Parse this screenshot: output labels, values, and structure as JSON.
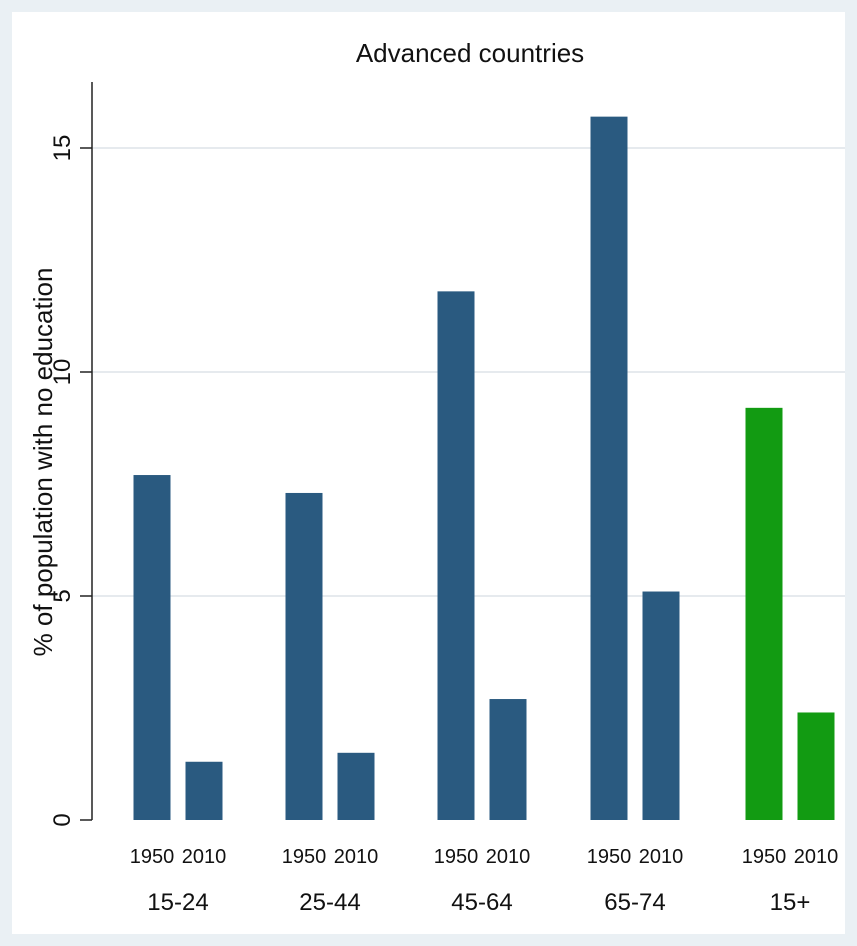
{
  "chart_data": {
    "type": "bar",
    "title": "Advanced countries",
    "ylabel": "% of population with no education",
    "xlabel": "",
    "ylim": [
      0,
      16.5
    ],
    "yticks": [
      0,
      5,
      10,
      15
    ],
    "grid": true,
    "legend": "none",
    "groups": [
      {
        "label": "15-24",
        "bars": [
          {
            "year": "1950",
            "value": 7.7,
            "color": "#2a5a80"
          },
          {
            "year": "2010",
            "value": 1.3,
            "color": "#2a5a80"
          }
        ]
      },
      {
        "label": "25-44",
        "bars": [
          {
            "year": "1950",
            "value": 7.3,
            "color": "#2a5a80"
          },
          {
            "year": "2010",
            "value": 1.5,
            "color": "#2a5a80"
          }
        ]
      },
      {
        "label": "45-64",
        "bars": [
          {
            "year": "1950",
            "value": 11.8,
            "color": "#2a5a80"
          },
          {
            "year": "2010",
            "value": 2.7,
            "color": "#2a5a80"
          }
        ]
      },
      {
        "label": "65-74",
        "bars": [
          {
            "year": "1950",
            "value": 15.7,
            "color": "#2a5a80"
          },
          {
            "year": "2010",
            "value": 5.1,
            "color": "#2a5a80"
          }
        ]
      },
      {
        "label": "15+",
        "bars": [
          {
            "year": "1950",
            "value": 9.2,
            "color": "#129b12"
          },
          {
            "year": "2010",
            "value": 2.4,
            "color": "#129b12"
          }
        ]
      }
    ]
  }
}
